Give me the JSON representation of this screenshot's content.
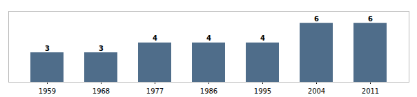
{
  "chart_data": {
    "type": "bar",
    "categories": [
      "1959",
      "1968",
      "1977",
      "1986",
      "1995",
      "2004",
      "2011"
    ],
    "values": [
      3,
      3,
      4,
      4,
      4,
      6,
      6
    ],
    "color": "#4f6d8a",
    "ylim": [
      0,
      7.2
    ],
    "data_labels": true,
    "tick_labels": "x"
  }
}
